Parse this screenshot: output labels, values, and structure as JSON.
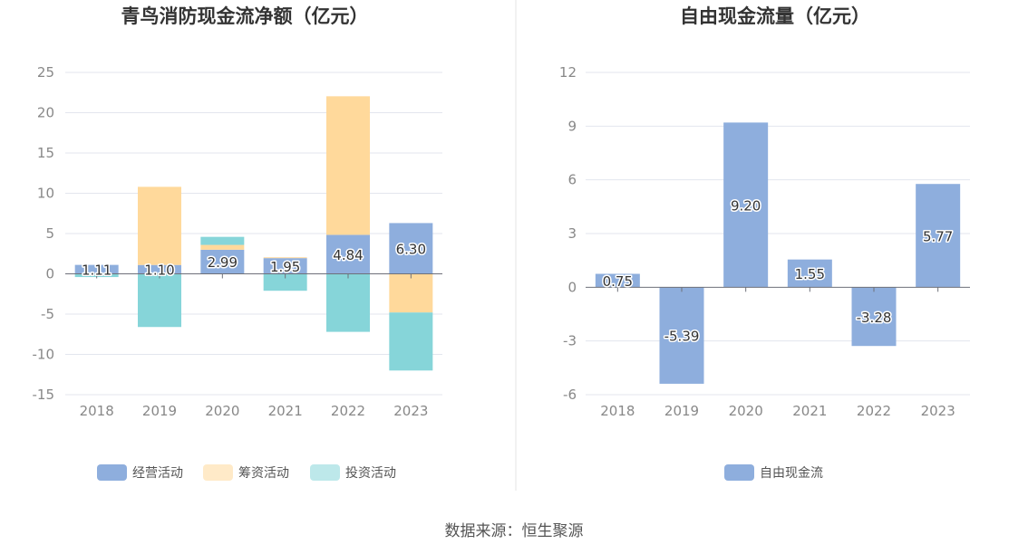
{
  "chart_data": [
    {
      "type": "bar",
      "stacked": true,
      "title": "青鸟消防现金流净额（亿元）",
      "categories": [
        "2018",
        "2019",
        "2020",
        "2021",
        "2022",
        "2023"
      ],
      "ylim": [
        -15,
        25
      ],
      "yticks": [
        "25",
        "20",
        "15",
        "10",
        "5",
        "0",
        "-5",
        "-10",
        "-15"
      ],
      "grid": true,
      "legend_position": "bottom",
      "labeled_series": 0,
      "series": [
        {
          "name": "经营活动",
          "color": "#8eaedd",
          "values": [
            1.11,
            1.1,
            2.99,
            1.95,
            4.84,
            6.3
          ],
          "labels": [
            "1.11",
            "1.10",
            "2.99",
            "1.95",
            "4.84",
            "6.30"
          ]
        },
        {
          "name": "筹资活动",
          "color": "#ffd99b",
          "values": [
            0,
            9.7,
            0.6,
            0.1,
            17.2,
            -4.8
          ]
        },
        {
          "name": "投资活动",
          "color": "#86d5d9",
          "values": [
            -0.4,
            -6.6,
            1.0,
            -2.1,
            -7.2,
            -7.2
          ]
        }
      ]
    },
    {
      "type": "bar",
      "title": "自由现金流量（亿元）",
      "categories": [
        "2018",
        "2019",
        "2020",
        "2021",
        "2022",
        "2023"
      ],
      "ylim": [
        -6,
        12
      ],
      "yticks": [
        "12",
        "9",
        "6",
        "3",
        "0",
        "-3",
        "-6"
      ],
      "grid": true,
      "legend_position": "bottom",
      "labeled_series": 0,
      "series": [
        {
          "name": "自由现金流",
          "color": "#8eaedd",
          "values": [
            0.75,
            -5.39,
            9.2,
            1.55,
            -3.28,
            5.77
          ],
          "labels": [
            "0.75",
            "-5.39",
            "9.20",
            "1.55",
            "-3.28",
            "5.77"
          ]
        }
      ]
    }
  ],
  "source_label": "数据来源：恒生聚源"
}
